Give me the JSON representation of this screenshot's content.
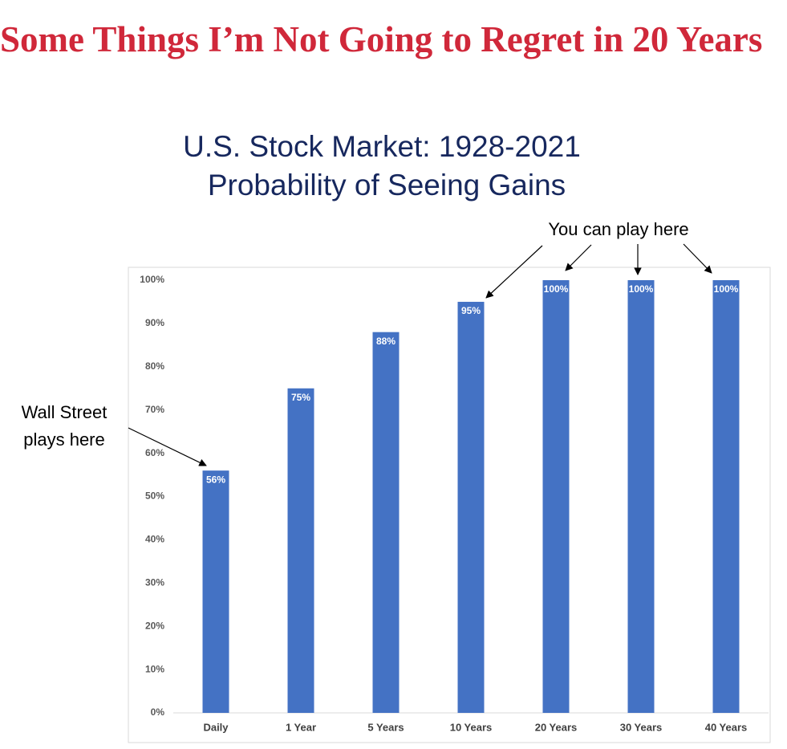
{
  "heading": "Some Things I’m Not Going to Regret in 20 Years",
  "chart_data": {
    "type": "bar",
    "title": "U.S. Stock Market: 1928-2021",
    "subtitle": "Probability of Seeing Gains",
    "categories": [
      "Daily",
      "1 Year",
      "5 Years",
      "10 Years",
      "20 Years",
      "30 Years",
      "40 Years"
    ],
    "values": [
      56,
      75,
      88,
      95,
      100,
      100,
      100
    ],
    "value_labels": [
      "56%",
      "75%",
      "88%",
      "95%",
      "100%",
      "100%",
      "100%"
    ],
    "color": "#4472c4",
    "ylim": [
      0,
      100
    ],
    "yticks": [
      {
        "value": 0,
        "label": "0%"
      },
      {
        "value": 10,
        "label": "10%"
      },
      {
        "value": 20,
        "label": "20%"
      },
      {
        "value": 30,
        "label": "30%"
      },
      {
        "value": 40,
        "label": "40%"
      },
      {
        "value": 50,
        "label": "50%"
      },
      {
        "value": 60,
        "label": "60%"
      },
      {
        "value": 70,
        "label": "70%"
      },
      {
        "value": 80,
        "label": "80%"
      },
      {
        "value": 90,
        "label": "90%"
      },
      {
        "value": 100,
        "label": "100%"
      }
    ],
    "grid": false,
    "annotations": [
      {
        "lines": [
          "You can play here"
        ]
      },
      {
        "lines": [
          "Wall Street",
          "plays here"
        ]
      }
    ]
  }
}
